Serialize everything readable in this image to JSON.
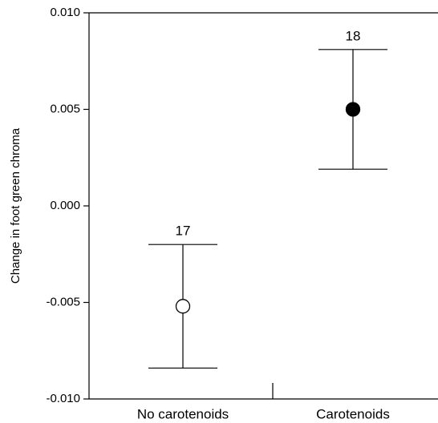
{
  "chart_data": {
    "type": "errorbar",
    "y_label": "Change in foot green chroma",
    "categories": [
      "No carotenoids",
      "Carotenoids"
    ],
    "values": [
      -0.0052,
      0.005
    ],
    "errors": [
      0.0032,
      0.0031
    ],
    "sample_sizes": [
      17,
      18
    ],
    "marker_fills": [
      "#ffffff",
      "#000000"
    ],
    "color": "#000000",
    "ylim": [
      -0.01,
      0.01
    ],
    "yticks": [
      {
        "value": -0.01,
        "label": "-0.010"
      },
      -0.005,
      {
        "value": 0,
        "label": "0.000"
      },
      0.005,
      {
        "value": 0.01,
        "label": "0.010"
      }
    ]
  }
}
